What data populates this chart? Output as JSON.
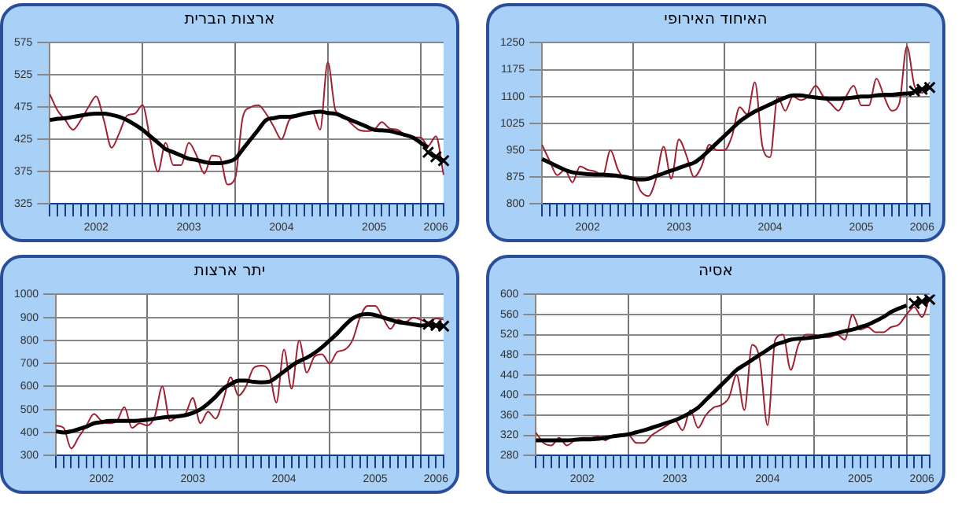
{
  "chart_data": [
    {
      "type": "line",
      "title": "ארצות הברית",
      "categories": [
        null,
        null,
        null,
        null,
        null,
        null,
        "2002",
        null,
        null,
        null,
        null,
        null,
        null,
        null,
        null,
        null,
        null,
        null,
        "2003",
        null,
        null,
        null,
        null,
        null,
        null,
        null,
        null,
        null,
        null,
        null,
        "2004",
        null,
        null,
        null,
        null,
        null,
        null,
        null,
        null,
        null,
        null,
        null,
        "2005",
        null,
        null,
        null,
        null,
        null,
        null,
        null,
        "2006",
        null
      ],
      "ylim": [
        325,
        575
      ],
      "yticks": [
        325,
        375,
        425,
        475,
        525,
        575
      ],
      "grid": true,
      "legend": false,
      "series": [
        {
          "color": "#a02030",
          "marker": "none",
          "values": [
            495,
            470,
            455,
            440,
            455,
            475,
            492,
            455,
            412,
            435,
            462,
            465,
            478,
            425,
            375,
            420,
            385,
            385,
            420,
            400,
            372,
            400,
            398,
            355,
            365,
            460,
            475,
            478,
            465,
            445,
            425,
            455,
            462,
            465,
            468,
            440,
            545,
            470,
            462,
            450,
            440,
            438,
            440,
            452,
            442,
            440,
            432,
            428,
            428,
            415,
            430,
            370
          ]
        },
        {
          "color": "#000000",
          "marker": "none",
          "values": [
            455,
            457,
            458,
            460,
            462,
            464,
            465,
            465,
            463,
            460,
            455,
            448,
            440,
            430,
            420,
            410,
            405,
            400,
            395,
            393,
            390,
            388,
            388,
            390,
            395,
            410,
            425,
            440,
            455,
            458,
            460,
            460,
            462,
            465,
            467,
            468,
            466,
            465,
            460,
            455,
            450,
            445,
            440,
            439,
            438,
            435,
            432,
            428,
            420,
            412,
            null,
            null
          ]
        },
        {
          "color": "#000000",
          "marker": "cross",
          "values": [
            null,
            null,
            null,
            null,
            null,
            null,
            null,
            null,
            null,
            null,
            null,
            null,
            null,
            null,
            null,
            null,
            null,
            null,
            null,
            null,
            null,
            null,
            null,
            null,
            null,
            null,
            null,
            null,
            null,
            null,
            null,
            null,
            null,
            null,
            null,
            null,
            null,
            null,
            null,
            null,
            null,
            null,
            null,
            null,
            null,
            null,
            null,
            null,
            null,
            405,
            398,
            392
          ]
        }
      ]
    },
    {
      "type": "line",
      "title": "האיחוד האירופי",
      "categories": [
        null,
        null,
        null,
        null,
        null,
        null,
        "2002",
        null,
        null,
        null,
        null,
        null,
        null,
        null,
        null,
        null,
        null,
        null,
        "2003",
        null,
        null,
        null,
        null,
        null,
        null,
        null,
        null,
        null,
        null,
        null,
        "2004",
        null,
        null,
        null,
        null,
        null,
        null,
        null,
        null,
        null,
        null,
        null,
        "2005",
        null,
        null,
        null,
        null,
        null,
        null,
        null,
        "2006",
        null
      ],
      "ylim": [
        800,
        1250
      ],
      "yticks": [
        800,
        875,
        950,
        1025,
        1100,
        1175,
        1250
      ],
      "grid": true,
      "legend": false,
      "series": [
        {
          "color": "#a02030",
          "marker": "none",
          "values": [
            965,
            920,
            880,
            895,
            860,
            905,
            895,
            890,
            880,
            950,
            895,
            870,
            875,
            835,
            822,
            870,
            960,
            870,
            980,
            935,
            875,
            905,
            965,
            950,
            950,
            990,
            1070,
            1050,
            1140,
            960,
            930,
            1100,
            1060,
            1100,
            1090,
            1100,
            1130,
            1100,
            1080,
            1060,
            1100,
            1130,
            1075,
            1075,
            1150,
            1100,
            1060,
            1080,
            1240,
            1130,
            1110,
            1140
          ]
        },
        {
          "color": "#000000",
          "marker": "none",
          "values": [
            925,
            915,
            905,
            895,
            888,
            885,
            883,
            882,
            882,
            880,
            878,
            875,
            870,
            868,
            870,
            878,
            885,
            893,
            900,
            908,
            915,
            930,
            950,
            970,
            990,
            1010,
            1030,
            1045,
            1058,
            1068,
            1078,
            1088,
            1097,
            1103,
            1103,
            1100,
            1097,
            1095,
            1093,
            1093,
            1095,
            1097,
            1100,
            1100,
            1103,
            1105,
            1105,
            1107,
            1108,
            1110,
            null,
            null
          ]
        },
        {
          "color": "#000000",
          "marker": "cross",
          "values": [
            null,
            null,
            null,
            null,
            null,
            null,
            null,
            null,
            null,
            null,
            null,
            null,
            null,
            null,
            null,
            null,
            null,
            null,
            null,
            null,
            null,
            null,
            null,
            null,
            null,
            null,
            null,
            null,
            null,
            null,
            null,
            null,
            null,
            null,
            null,
            null,
            null,
            null,
            null,
            null,
            null,
            null,
            null,
            null,
            null,
            null,
            null,
            null,
            null,
            1115,
            1120,
            1125
          ]
        }
      ]
    },
    {
      "type": "line",
      "title": "יתר ארצות",
      "categories": [
        null,
        null,
        null,
        null,
        null,
        null,
        "2002",
        null,
        null,
        null,
        null,
        null,
        null,
        null,
        null,
        null,
        null,
        null,
        "2003",
        null,
        null,
        null,
        null,
        null,
        null,
        null,
        null,
        null,
        null,
        null,
        "2004",
        null,
        null,
        null,
        null,
        null,
        null,
        null,
        null,
        null,
        null,
        null,
        "2005",
        null,
        null,
        null,
        null,
        null,
        null,
        null,
        "2006",
        null
      ],
      "ylim": [
        300,
        1000
      ],
      "yticks": [
        300,
        400,
        500,
        600,
        700,
        800,
        900,
        1000
      ],
      "grid": true,
      "legend": false,
      "series": [
        {
          "color": "#a02030",
          "marker": "none",
          "values": [
            430,
            420,
            330,
            380,
            430,
            480,
            450,
            440,
            450,
            510,
            420,
            440,
            430,
            470,
            600,
            450,
            470,
            480,
            550,
            440,
            490,
            460,
            540,
            640,
            560,
            600,
            680,
            690,
            670,
            530,
            760,
            590,
            800,
            660,
            730,
            740,
            700,
            750,
            760,
            800,
            900,
            950,
            950,
            900,
            850,
            890,
            880,
            900,
            890,
            880,
            895,
            890
          ]
        },
        {
          "color": "#000000",
          "marker": "none",
          "values": [
            405,
            400,
            405,
            415,
            425,
            440,
            445,
            450,
            450,
            450,
            450,
            452,
            455,
            460,
            465,
            468,
            470,
            475,
            485,
            500,
            525,
            555,
            590,
            610,
            625,
            625,
            620,
            618,
            620,
            640,
            665,
            690,
            710,
            725,
            745,
            770,
            800,
            830,
            865,
            895,
            910,
            915,
            910,
            900,
            890,
            880,
            875,
            870,
            865,
            868,
            null,
            null
          ]
        },
        {
          "color": "#000000",
          "marker": "cross",
          "values": [
            null,
            null,
            null,
            null,
            null,
            null,
            null,
            null,
            null,
            null,
            null,
            null,
            null,
            null,
            null,
            null,
            null,
            null,
            null,
            null,
            null,
            null,
            null,
            null,
            null,
            null,
            null,
            null,
            null,
            null,
            null,
            null,
            null,
            null,
            null,
            null,
            null,
            null,
            null,
            null,
            null,
            null,
            null,
            null,
            null,
            null,
            null,
            null,
            null,
            870,
            865,
            862
          ]
        }
      ]
    },
    {
      "type": "line",
      "title": "אסיה",
      "categories": [
        null,
        null,
        null,
        null,
        null,
        null,
        "2002",
        null,
        null,
        null,
        null,
        null,
        null,
        null,
        null,
        null,
        null,
        null,
        "2003",
        null,
        null,
        null,
        null,
        null,
        null,
        null,
        null,
        null,
        null,
        null,
        "2004",
        null,
        null,
        null,
        null,
        null,
        null,
        null,
        null,
        null,
        null,
        null,
        "2005",
        null,
        null,
        null,
        null,
        null,
        null,
        null,
        "2006",
        null
      ],
      "ylim": [
        280,
        600
      ],
      "yticks": [
        280,
        320,
        360,
        400,
        440,
        480,
        520,
        560,
        600
      ],
      "grid": true,
      "legend": false,
      "series": [
        {
          "color": "#a02030",
          "marker": "none",
          "values": [
            325,
            305,
            300,
            315,
            300,
            310,
            315,
            315,
            318,
            310,
            320,
            318,
            320,
            305,
            305,
            320,
            330,
            340,
            350,
            330,
            370,
            335,
            360,
            375,
            380,
            395,
            440,
            370,
            500,
            470,
            340,
            510,
            520,
            450,
            500,
            520,
            520,
            515,
            515,
            520,
            510,
            560,
            530,
            535,
            525,
            525,
            535,
            540,
            560,
            575,
            555,
            595
          ]
        },
        {
          "color": "#000000",
          "marker": "none",
          "values": [
            310,
            310,
            310,
            310,
            310,
            311,
            312,
            312,
            313,
            315,
            318,
            320,
            322,
            326,
            330,
            335,
            340,
            345,
            350,
            357,
            365,
            375,
            390,
            405,
            420,
            435,
            450,
            460,
            470,
            480,
            490,
            500,
            505,
            510,
            512,
            513,
            515,
            517,
            520,
            523,
            527,
            530,
            535,
            540,
            547,
            555,
            565,
            572,
            578,
            null,
            null,
            null
          ]
        },
        {
          "color": "#000000",
          "marker": "cross",
          "values": [
            null,
            null,
            null,
            null,
            null,
            null,
            null,
            null,
            null,
            null,
            null,
            null,
            null,
            null,
            null,
            null,
            null,
            null,
            null,
            null,
            null,
            null,
            null,
            null,
            null,
            null,
            null,
            null,
            null,
            null,
            null,
            null,
            null,
            null,
            null,
            null,
            null,
            null,
            null,
            null,
            null,
            null,
            null,
            null,
            null,
            null,
            null,
            null,
            null,
            582,
            586,
            590
          ]
        }
      ]
    }
  ]
}
